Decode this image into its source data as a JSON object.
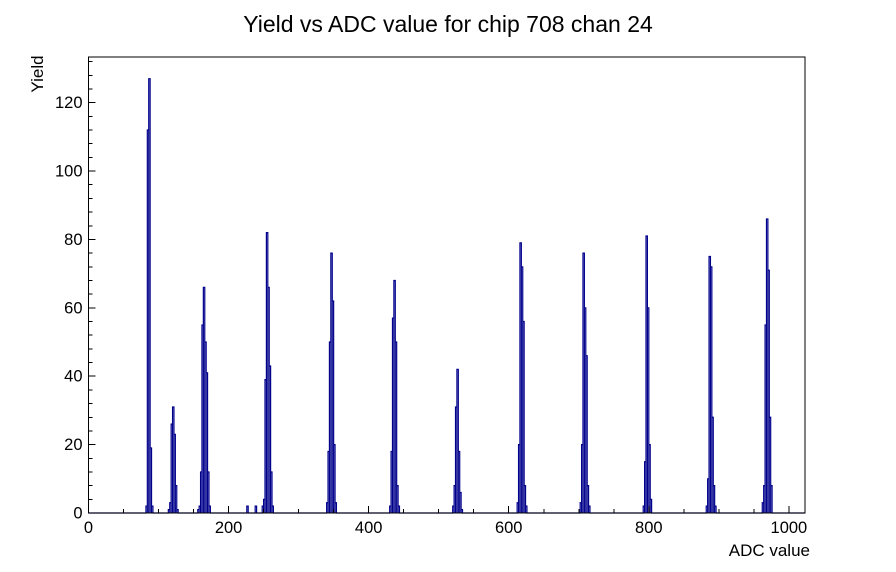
{
  "chart_data": {
    "type": "bar",
    "title": "Yield vs ADC value for chip 708 chan 24",
    "xlabel": "ADC value",
    "ylabel": "Yield",
    "xlim": [
      0,
      1023
    ],
    "ylim": [
      0,
      133.35
    ],
    "x_major_ticks": [
      0,
      200,
      400,
      600,
      800,
      1000
    ],
    "x_minor_step": 50,
    "y_major_ticks": [
      0,
      20,
      40,
      60,
      80,
      100,
      120
    ],
    "y_minor_step": 4,
    "grid": false,
    "legend": false,
    "line_color": "#00008b",
    "axis_color": "#000000",
    "background_color": "#ffffff",
    "bin_width": 2,
    "bins": [
      [
        82,
        2
      ],
      [
        84,
        112
      ],
      [
        86,
        127
      ],
      [
        88,
        19
      ],
      [
        90,
        2
      ],
      [
        114,
        1
      ],
      [
        116,
        3
      ],
      [
        118,
        26
      ],
      [
        120,
        31
      ],
      [
        122,
        23
      ],
      [
        124,
        8
      ],
      [
        126,
        1
      ],
      [
        156,
        1
      ],
      [
        158,
        2
      ],
      [
        160,
        12
      ],
      [
        162,
        55
      ],
      [
        164,
        66
      ],
      [
        166,
        50
      ],
      [
        168,
        41
      ],
      [
        170,
        12
      ],
      [
        172,
        2
      ],
      [
        226,
        2
      ],
      [
        238,
        2
      ],
      [
        248,
        2
      ],
      [
        250,
        4
      ],
      [
        252,
        39
      ],
      [
        254,
        82
      ],
      [
        256,
        66
      ],
      [
        258,
        43
      ],
      [
        260,
        12
      ],
      [
        262,
        2
      ],
      [
        340,
        3
      ],
      [
        342,
        18
      ],
      [
        344,
        50
      ],
      [
        346,
        76
      ],
      [
        348,
        62
      ],
      [
        350,
        20
      ],
      [
        352,
        3
      ],
      [
        430,
        2
      ],
      [
        432,
        18
      ],
      [
        434,
        57
      ],
      [
        436,
        68
      ],
      [
        438,
        50
      ],
      [
        440,
        8
      ],
      [
        442,
        2
      ],
      [
        520,
        2
      ],
      [
        522,
        8
      ],
      [
        524,
        31
      ],
      [
        526,
        42
      ],
      [
        528,
        18
      ],
      [
        530,
        6
      ],
      [
        532,
        1
      ],
      [
        612,
        3
      ],
      [
        614,
        20
      ],
      [
        616,
        79
      ],
      [
        618,
        72
      ],
      [
        620,
        56
      ],
      [
        622,
        8
      ],
      [
        624,
        2
      ],
      [
        702,
        3
      ],
      [
        704,
        20
      ],
      [
        706,
        76
      ],
      [
        708,
        60
      ],
      [
        710,
        46
      ],
      [
        712,
        8
      ],
      [
        714,
        2
      ],
      [
        792,
        2
      ],
      [
        794,
        15
      ],
      [
        796,
        81
      ],
      [
        798,
        60
      ],
      [
        800,
        20
      ],
      [
        802,
        4
      ],
      [
        882,
        2
      ],
      [
        884,
        10
      ],
      [
        886,
        75
      ],
      [
        888,
        72
      ],
      [
        890,
        28
      ],
      [
        892,
        8
      ],
      [
        894,
        2
      ],
      [
        962,
        3
      ],
      [
        964,
        8
      ],
      [
        966,
        55
      ],
      [
        968,
        86
      ],
      [
        970,
        71
      ],
      [
        972,
        28
      ],
      [
        974,
        8
      ]
    ],
    "peaks": [
      {
        "adc": 86,
        "yield": 127
      },
      {
        "adc": 120,
        "yield": 31
      },
      {
        "adc": 164,
        "yield": 66
      },
      {
        "adc": 254,
        "yield": 82
      },
      {
        "adc": 346,
        "yield": 76
      },
      {
        "adc": 436,
        "yield": 68
      },
      {
        "adc": 526,
        "yield": 42
      },
      {
        "adc": 616,
        "yield": 79
      },
      {
        "adc": 706,
        "yield": 76
      },
      {
        "adc": 796,
        "yield": 81
      },
      {
        "adc": 886,
        "yield": 75
      },
      {
        "adc": 968,
        "yield": 86
      }
    ]
  }
}
